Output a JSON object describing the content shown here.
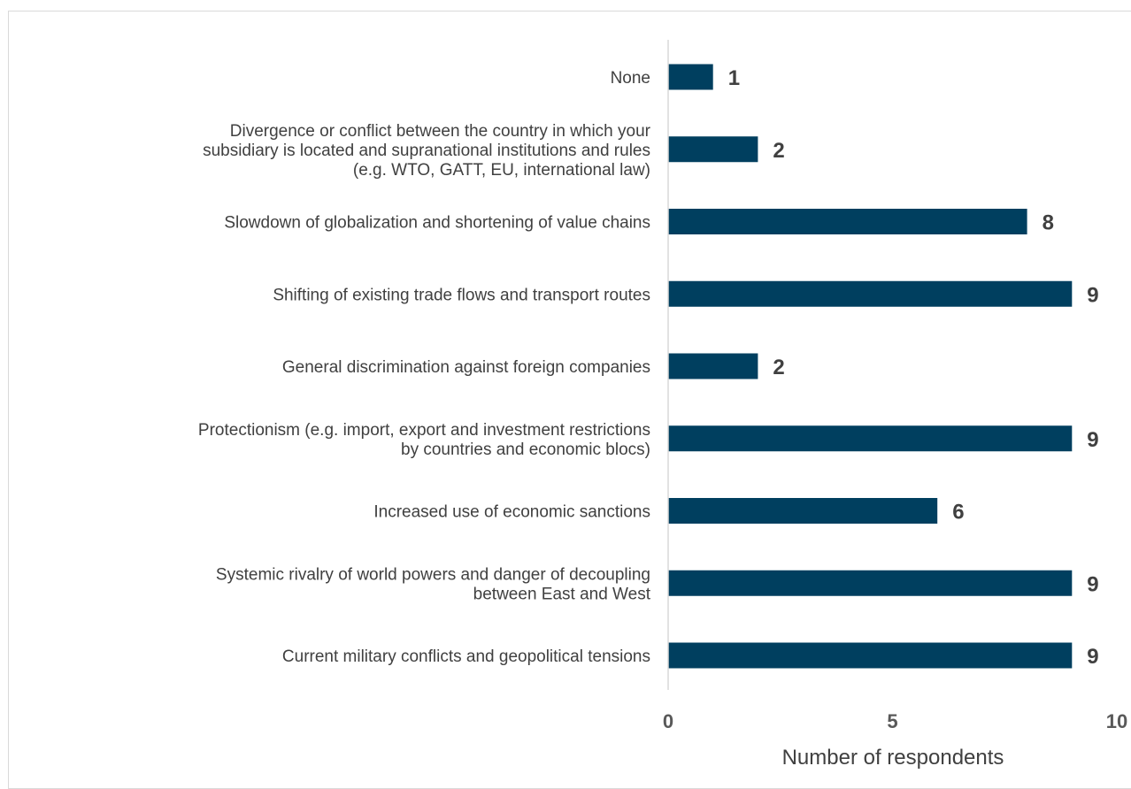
{
  "chart_data": {
    "type": "bar",
    "orientation": "horizontal",
    "categories": [
      [
        "None"
      ],
      [
        "Divergence or conflict between the country in which your",
        "subsidiary is located and supranational institutions and rules",
        "(e.g. WTO, GATT, EU, international law)"
      ],
      [
        "Slowdown of globalization and shortening of value chains"
      ],
      [
        "Shifting of existing trade flows and transport routes"
      ],
      [
        "General discrimination against foreign companies"
      ],
      [
        "Protectionism (e.g. import, export and investment restrictions",
        "by countries and economic blocs)"
      ],
      [
        "Increased use of economic sanctions"
      ],
      [
        "Systemic rivalry of world powers and danger of decoupling",
        "between East and West"
      ],
      [
        "Current military conflicts and geopolitical tensions"
      ]
    ],
    "values": [
      1,
      2,
      8,
      9,
      2,
      9,
      6,
      9,
      9
    ],
    "xlim": [
      0,
      10
    ],
    "xticks": [
      0,
      5,
      10
    ],
    "xlabel": "Number of respondents",
    "ylabel": "",
    "title": "",
    "bar_color": "#003f5f",
    "grid": false,
    "data_labels": true
  }
}
